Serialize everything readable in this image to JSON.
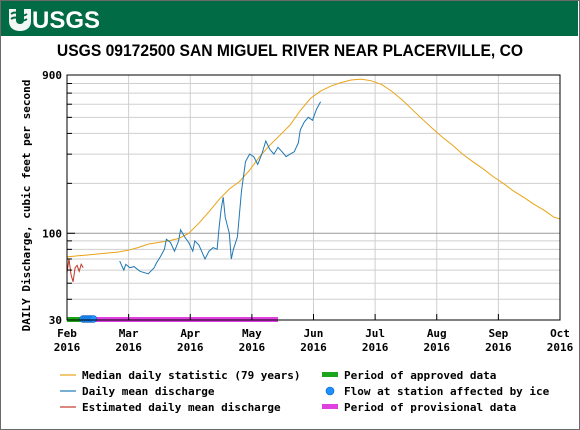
{
  "header": {
    "logo_text": "USGS",
    "brand_color": "#006b45"
  },
  "chart_data": {
    "type": "line",
    "title": "USGS 09172500 SAN MIGUEL RIVER NEAR PLACERVILLE, CO",
    "ylabel": "DAILY Discharge, cubic feet per second",
    "xlabel": "",
    "y_scale": "log",
    "ylim": [
      30,
      900
    ],
    "y_ticks": [
      {
        "value": 30,
        "label": "30"
      },
      {
        "value": 100,
        "label": "100"
      },
      {
        "value": 900,
        "label": "900"
      }
    ],
    "y_minor_ticks": [
      40,
      50,
      60,
      70,
      80,
      90,
      200,
      300,
      400,
      500,
      600,
      700,
      800
    ],
    "x_ticks": [
      {
        "month": "Feb",
        "year": "2016"
      },
      {
        "month": "Mar",
        "year": "2016"
      },
      {
        "month": "Apr",
        "year": "2016"
      },
      {
        "month": "May",
        "year": "2016"
      },
      {
        "month": "Jun",
        "year": "2016"
      },
      {
        "month": "Jul",
        "year": "2016"
      },
      {
        "month": "Aug",
        "year": "2016"
      },
      {
        "month": "Sep",
        "year": "2016"
      },
      {
        "month": "Oct",
        "year": "2016"
      }
    ],
    "x_range_days": [
      0,
      243
    ],
    "grid": true,
    "series": [
      {
        "name": "Median daily statistic (79 years)",
        "color": "#e8a317",
        "points": [
          [
            0,
            72
          ],
          [
            5,
            73
          ],
          [
            10,
            74
          ],
          [
            15,
            75
          ],
          [
            20,
            76
          ],
          [
            25,
            77
          ],
          [
            30,
            79
          ],
          [
            35,
            82
          ],
          [
            40,
            86
          ],
          [
            45,
            88
          ],
          [
            50,
            90
          ],
          [
            55,
            93
          ],
          [
            60,
            100
          ],
          [
            65,
            115
          ],
          [
            70,
            135
          ],
          [
            75,
            160
          ],
          [
            80,
            185
          ],
          [
            85,
            205
          ],
          [
            90,
            240
          ],
          [
            95,
            290
          ],
          [
            100,
            340
          ],
          [
            105,
            390
          ],
          [
            110,
            450
          ],
          [
            115,
            550
          ],
          [
            120,
            650
          ],
          [
            125,
            720
          ],
          [
            130,
            770
          ],
          [
            135,
            810
          ],
          [
            140,
            840
          ],
          [
            145,
            850
          ],
          [
            150,
            830
          ],
          [
            155,
            790
          ],
          [
            160,
            720
          ],
          [
            165,
            640
          ],
          [
            170,
            560
          ],
          [
            175,
            490
          ],
          [
            180,
            430
          ],
          [
            185,
            380
          ],
          [
            190,
            340
          ],
          [
            195,
            300
          ],
          [
            200,
            270
          ],
          [
            205,
            245
          ],
          [
            210,
            220
          ],
          [
            215,
            200
          ],
          [
            220,
            180
          ],
          [
            225,
            165
          ],
          [
            230,
            150
          ],
          [
            235,
            138
          ],
          [
            240,
            125
          ],
          [
            243,
            122
          ]
        ]
      },
      {
        "name": "Daily mean discharge",
        "color": "#1f77b4",
        "points": [
          [
            26,
            68
          ],
          [
            28,
            60
          ],
          [
            29,
            65
          ],
          [
            31,
            62
          ],
          [
            33,
            63
          ],
          [
            36,
            59
          ],
          [
            40,
            57
          ],
          [
            43,
            62
          ],
          [
            44,
            66
          ],
          [
            46,
            72
          ],
          [
            48,
            80
          ],
          [
            49,
            92
          ],
          [
            51,
            88
          ],
          [
            53,
            78
          ],
          [
            55,
            90
          ],
          [
            56,
            105
          ],
          [
            58,
            95
          ],
          [
            60,
            88
          ],
          [
            62,
            78
          ],
          [
            63,
            90
          ],
          [
            65,
            85
          ],
          [
            68,
            70
          ],
          [
            70,
            78
          ],
          [
            72,
            82
          ],
          [
            74,
            80
          ],
          [
            75,
            110
          ],
          [
            76,
            140
          ],
          [
            77,
            165
          ],
          [
            78,
            125
          ],
          [
            80,
            100
          ],
          [
            81,
            70
          ],
          [
            82,
            80
          ],
          [
            84,
            95
          ],
          [
            86,
            180
          ],
          [
            88,
            270
          ],
          [
            90,
            300
          ],
          [
            92,
            290
          ],
          [
            94,
            260
          ],
          [
            96,
            300
          ],
          [
            98,
            360
          ],
          [
            100,
            320
          ],
          [
            102,
            300
          ],
          [
            104,
            330
          ],
          [
            106,
            310
          ],
          [
            108,
            290
          ],
          [
            110,
            300
          ],
          [
            112,
            310
          ],
          [
            114,
            350
          ],
          [
            115,
            420
          ],
          [
            117,
            470
          ],
          [
            119,
            500
          ],
          [
            121,
            480
          ],
          [
            123,
            560
          ],
          [
            125,
            620
          ]
        ]
      },
      {
        "name": "Estimated daily mean discharge",
        "color": "#c0392b",
        "points": [
          [
            0,
            58
          ],
          [
            1,
            70
          ],
          [
            2,
            56
          ],
          [
            3,
            51
          ],
          [
            4,
            62
          ],
          [
            5,
            64
          ],
          [
            6,
            59
          ],
          [
            7,
            65
          ],
          [
            8,
            62
          ]
        ]
      }
    ],
    "period_bars": [
      {
        "name": "Period of approved data",
        "color": "#1aa51a",
        "start": 0,
        "end": 10
      },
      {
        "name": "Period of provisional data",
        "color": "#e040e0",
        "start": 10,
        "end": 104
      }
    ],
    "ice_markers": {
      "name": "Flow at station affected by ice",
      "color": "#1e90ff",
      "start": 8,
      "end": 13
    },
    "legend": [
      {
        "label": "Median daily statistic (79 years)",
        "kind": "line",
        "color": "#e8a317"
      },
      {
        "label": "Period of approved data",
        "kind": "bar",
        "color": "#1aa51a"
      },
      {
        "label": "Daily mean discharge",
        "kind": "line",
        "color": "#1f77b4"
      },
      {
        "label": "Flow at station affected by ice",
        "kind": "dot",
        "color": "#1e90ff"
      },
      {
        "label": "Estimated daily mean discharge",
        "kind": "line",
        "color": "#c0392b"
      },
      {
        "label": "Period of provisional data",
        "kind": "bar",
        "color": "#e040e0"
      }
    ],
    "legend_position": "bottom"
  }
}
